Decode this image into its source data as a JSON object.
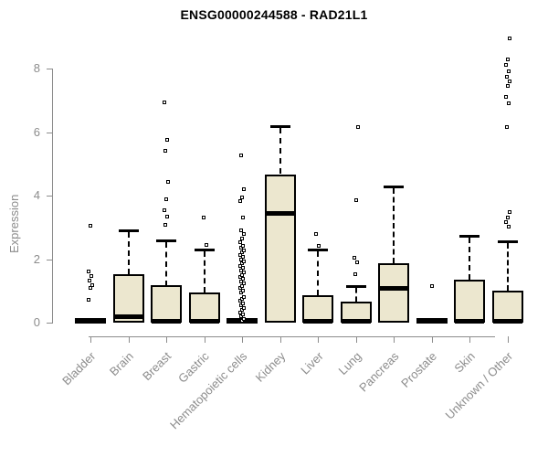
{
  "title": "ENSG00000244588 - RAD21L1",
  "ylabel": "Expression",
  "colors": {
    "box_fill": "#ece7cf",
    "box_border": "#000000",
    "median": "#000000",
    "axis": "#8c8c8c",
    "title_text": "#000000",
    "background": "#ffffff"
  },
  "chart_data": {
    "type": "boxplot",
    "title": "ENSG00000244588 - RAD21L1",
    "ylabel": "Expression",
    "xlabel": "",
    "ylim": [
      0,
      9.2
    ],
    "y_ticks": [
      0,
      2,
      4,
      6,
      8
    ],
    "grid": false,
    "legend": false,
    "x_label_rotation_deg": 45,
    "categories": [
      "Bladder",
      "Brain",
      "Breast",
      "Gastric",
      "Hematopoietic cells",
      "Kidney",
      "Liver",
      "Lung",
      "Pancreas",
      "Prostate",
      "Skin",
      "Unknown / Other"
    ],
    "series": [
      {
        "name": "Bladder",
        "q1": 0,
        "median": 0,
        "q3": 0.05,
        "whisker_low": 0,
        "whisker_high": 0.05,
        "outliers": [
          0.72,
          1.09,
          1.18,
          1.32,
          1.47,
          1.61,
          3.05
        ]
      },
      {
        "name": "Brain",
        "q1": 0,
        "median": 0.2,
        "q3": 1.52,
        "whisker_low": 0,
        "whisker_high": 2.9,
        "outliers": []
      },
      {
        "name": "Breast",
        "q1": 0,
        "median": 0.07,
        "q3": 1.17,
        "whisker_low": 0,
        "whisker_high": 2.6,
        "outliers": [
          3.08,
          3.35,
          3.54,
          3.88,
          4.42,
          5.41,
          5.76,
          6.94
        ]
      },
      {
        "name": "Gastric",
        "q1": 0,
        "median": 0.07,
        "q3": 0.95,
        "whisker_low": 0,
        "whisker_high": 2.3,
        "outliers": [
          2.45,
          3.32
        ]
      },
      {
        "name": "Hematopoietic cells",
        "q1": 0,
        "median": 0,
        "q3": 0.05,
        "whisker_low": 0,
        "whisker_high": 0.05,
        "outliers": [
          0.05,
          0.12,
          0.19,
          0.26,
          0.33,
          0.4,
          0.47,
          0.54,
          0.61,
          0.68,
          0.75,
          0.82,
          0.95,
          1.02,
          1.09,
          1.16,
          1.23,
          1.3,
          1.37,
          1.44,
          1.51,
          1.58,
          1.65,
          1.72,
          1.79,
          1.86,
          1.93,
          2.0,
          2.07,
          2.14,
          2.21,
          2.28,
          2.35,
          2.42,
          2.52,
          2.64,
          2.78,
          2.9,
          3.31,
          3.83,
          3.94,
          4.21,
          5.27
        ]
      },
      {
        "name": "Kidney",
        "q1": 0,
        "median": 3.45,
        "q3": 4.67,
        "whisker_low": 0,
        "whisker_high": 6.18,
        "outliers": []
      },
      {
        "name": "Liver",
        "q1": 0,
        "median": 0.07,
        "q3": 0.87,
        "whisker_low": 0,
        "whisker_high": 2.31,
        "outliers": [
          2.42,
          2.79
        ]
      },
      {
        "name": "Lung",
        "q1": 0,
        "median": 0.07,
        "q3": 0.66,
        "whisker_low": 0,
        "whisker_high": 1.14,
        "outliers": [
          1.53,
          1.91,
          2.05,
          3.85,
          6.15
        ]
      },
      {
        "name": "Pancreas",
        "q1": 0,
        "median": 1.09,
        "q3": 1.87,
        "whisker_low": 0,
        "whisker_high": 4.29,
        "outliers": []
      },
      {
        "name": "Prostate",
        "q1": 0,
        "median": 0,
        "q3": 0.05,
        "whisker_low": 0,
        "whisker_high": 0.05,
        "outliers": [
          1.16
        ]
      },
      {
        "name": "Skin",
        "q1": 0,
        "median": 0.07,
        "q3": 1.35,
        "whisker_low": 0,
        "whisker_high": 2.72,
        "outliers": []
      },
      {
        "name": "Unknown / Other",
        "q1": 0,
        "median": 0.07,
        "q3": 1.0,
        "whisker_low": 0,
        "whisker_high": 2.55,
        "outliers": [
          3.01,
          3.16,
          3.3,
          3.49,
          6.15,
          6.91,
          7.1,
          7.45,
          7.6,
          7.75,
          7.91,
          8.11,
          8.3,
          8.94
        ]
      }
    ]
  }
}
